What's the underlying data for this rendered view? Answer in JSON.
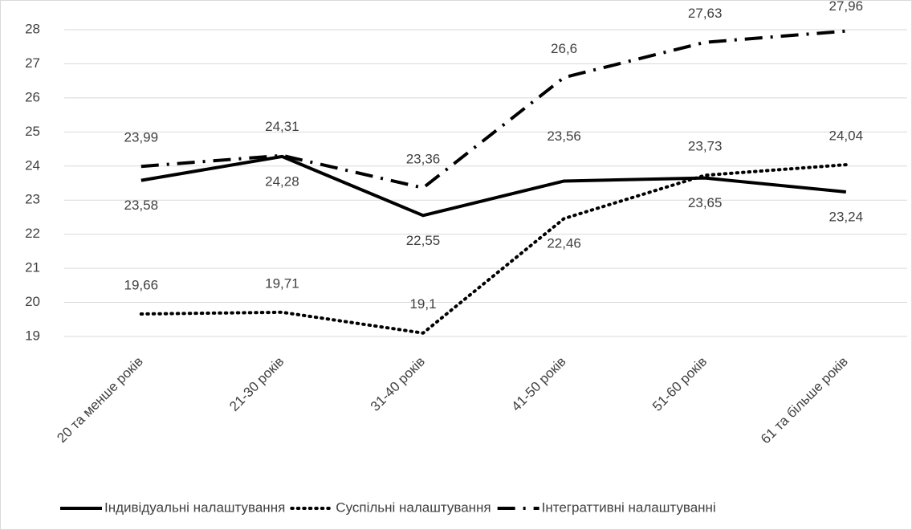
{
  "chart_data": {
    "type": "line",
    "categories": [
      "20 та менше років",
      "21-30 років",
      "31-40 років",
      "41-50 років",
      "51-60 років",
      "61 та більше років"
    ],
    "series": [
      {
        "name": "Індивідуальні налаштування",
        "color": "#000000",
        "style": "solid",
        "values": [
          23.58,
          24.28,
          22.55,
          23.56,
          23.65,
          23.24
        ],
        "value_labels": [
          "23,58",
          "24,28",
          "22,55",
          "23,56",
          "23,65",
          "23,24"
        ]
      },
      {
        "name": "Суспільні налаштування",
        "color": "#000000",
        "style": "dotted",
        "values": [
          19.66,
          19.71,
          19.1,
          22.46,
          23.73,
          24.04
        ],
        "value_labels": [
          "19,66",
          "19,71",
          "19,1",
          "22,46",
          "23,73",
          "24,04"
        ]
      },
      {
        "name": "Інтеграттивні налаштуванні",
        "color": "#000000",
        "style": "dashdot",
        "values": [
          23.99,
          24.31,
          23.36,
          26.6,
          27.63,
          27.96
        ],
        "value_labels": [
          "23,99",
          "24,31",
          "23,36",
          "26,6",
          "27,63",
          "27,96"
        ]
      }
    ],
    "ylim": [
      19,
      28
    ],
    "yticks": [
      19,
      20,
      21,
      22,
      23,
      24,
      25,
      26,
      27,
      28
    ],
    "grid": true,
    "legend": "bottom"
  }
}
